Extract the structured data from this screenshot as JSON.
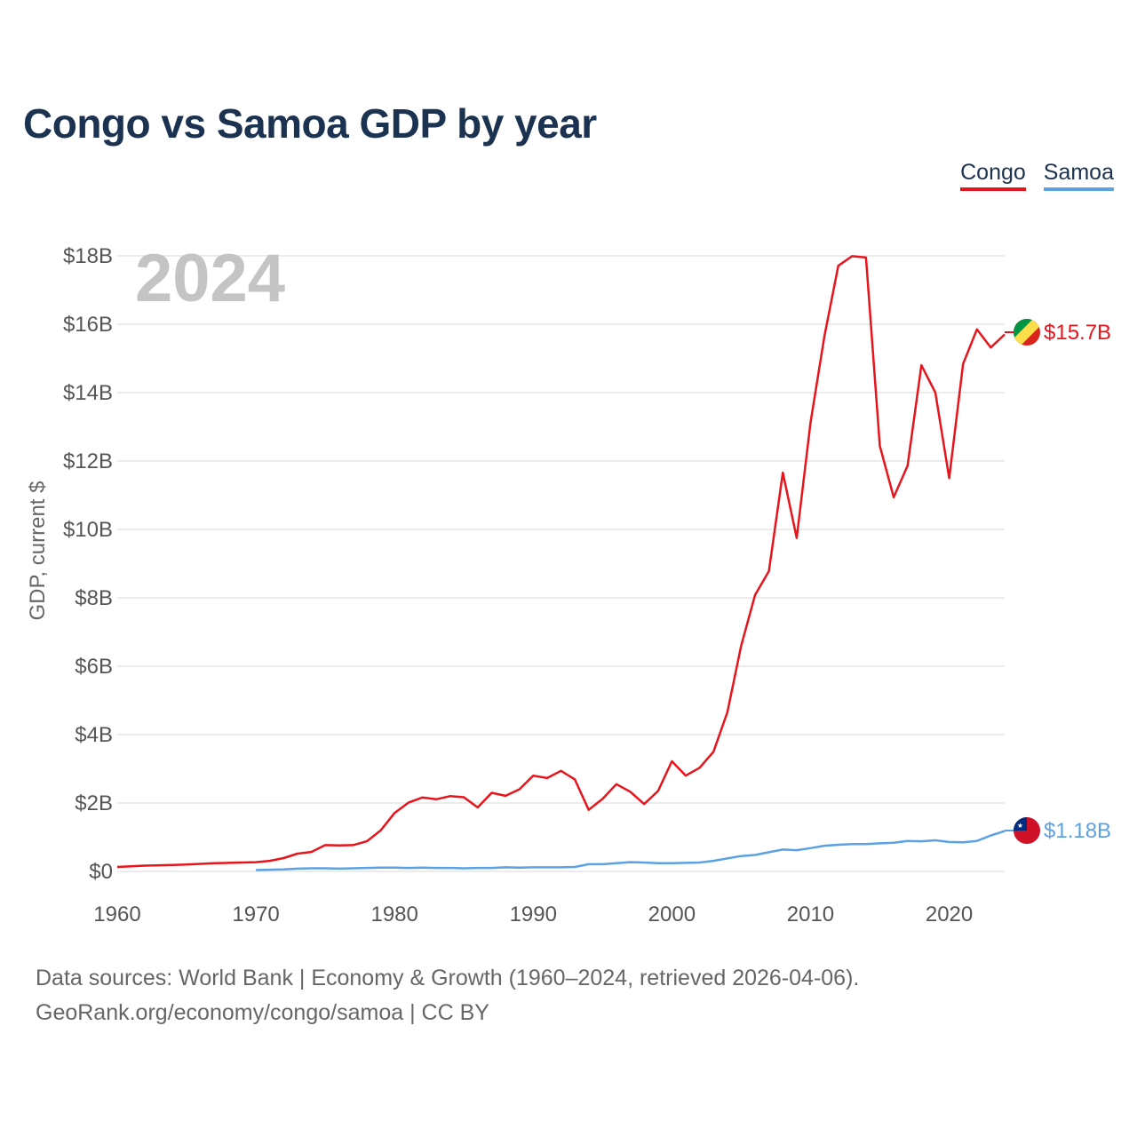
{
  "title": "Congo vs Samoa GDP by year",
  "footer": {
    "line1": "Data sources: World Bank | Economy & Growth (1960–2024, retrieved 2026-04-06).",
    "line2": "GeoRank.org/economy/congo/samoa | CC BY"
  },
  "chart_data": {
    "type": "line",
    "title": "Congo vs Samoa GDP by year",
    "xlabel": "",
    "ylabel": "GDP, current $",
    "xlim": [
      1960,
      2024
    ],
    "ylim": [
      0,
      18
    ],
    "unit": "billion US$",
    "watermark_year": "2024",
    "x_ticks": [
      1960,
      1970,
      1980,
      1990,
      2000,
      2010,
      2020
    ],
    "y_ticks": [
      0,
      2,
      4,
      6,
      8,
      10,
      12,
      14,
      16,
      18
    ],
    "y_tick_labels": [
      "$0",
      "$2B",
      "$4B",
      "$6B",
      "$8B",
      "$10B",
      "$12B",
      "$14B",
      "$16B",
      "$18B"
    ],
    "grid": true,
    "legend_position": "top-right",
    "series": [
      {
        "name": "Congo",
        "color": "#e8141b",
        "flag": "congo-flag",
        "end_label": "$15.7B",
        "x": [
          1960,
          1961,
          1962,
          1963,
          1964,
          1965,
          1966,
          1967,
          1968,
          1969,
          1970,
          1971,
          1972,
          1973,
          1974,
          1975,
          1976,
          1977,
          1978,
          1979,
          1980,
          1981,
          1982,
          1983,
          1984,
          1985,
          1986,
          1987,
          1988,
          1989,
          1990,
          1991,
          1992,
          1993,
          1994,
          1995,
          1996,
          1997,
          1998,
          1999,
          2000,
          2001,
          2002,
          2003,
          2004,
          2005,
          2006,
          2007,
          2008,
          2009,
          2010,
          2011,
          2012,
          2013,
          2014,
          2015,
          2016,
          2017,
          2018,
          2019,
          2020,
          2021,
          2022,
          2023,
          2024
        ],
        "values": [
          0.13,
          0.15,
          0.17,
          0.18,
          0.19,
          0.2,
          0.22,
          0.24,
          0.25,
          0.26,
          0.27,
          0.31,
          0.39,
          0.52,
          0.57,
          0.77,
          0.76,
          0.77,
          0.88,
          1.2,
          1.71,
          2.01,
          2.16,
          2.11,
          2.2,
          2.17,
          1.87,
          2.3,
          2.21,
          2.4,
          2.8,
          2.73,
          2.94,
          2.69,
          1.8,
          2.12,
          2.55,
          2.33,
          1.97,
          2.35,
          3.22,
          2.8,
          3.03,
          3.5,
          4.65,
          6.6,
          8.08,
          8.78,
          11.66,
          9.75,
          13.13,
          15.65,
          17.71,
          17.99,
          17.95,
          12.44,
          10.94,
          11.86,
          14.8,
          14.0,
          11.5,
          14.84,
          15.85,
          15.32,
          15.7
        ]
      },
      {
        "name": "Samoa",
        "color": "#5ba2e4",
        "flag": "samoa-flag",
        "end_label": "$1.18B",
        "x": [
          1970,
          1971,
          1972,
          1973,
          1974,
          1975,
          1976,
          1977,
          1978,
          1979,
          1980,
          1981,
          1982,
          1983,
          1984,
          1985,
          1986,
          1987,
          1988,
          1989,
          1990,
          1991,
          1992,
          1993,
          1994,
          1995,
          1996,
          1997,
          1998,
          1999,
          2000,
          2001,
          2002,
          2003,
          2004,
          2005,
          2006,
          2007,
          2008,
          2009,
          2010,
          2011,
          2012,
          2013,
          2014,
          2015,
          2016,
          2017,
          2018,
          2019,
          2020,
          2021,
          2022,
          2023,
          2024
        ],
        "values": [
          0.04,
          0.05,
          0.06,
          0.08,
          0.09,
          0.09,
          0.08,
          0.09,
          0.1,
          0.11,
          0.11,
          0.1,
          0.11,
          0.1,
          0.1,
          0.09,
          0.1,
          0.1,
          0.12,
          0.11,
          0.12,
          0.12,
          0.12,
          0.13,
          0.21,
          0.21,
          0.24,
          0.27,
          0.26,
          0.24,
          0.24,
          0.25,
          0.26,
          0.31,
          0.38,
          0.45,
          0.48,
          0.56,
          0.64,
          0.62,
          0.68,
          0.75,
          0.78,
          0.8,
          0.8,
          0.82,
          0.84,
          0.89,
          0.88,
          0.91,
          0.86,
          0.85,
          0.89,
          1.05,
          1.18
        ]
      }
    ]
  }
}
